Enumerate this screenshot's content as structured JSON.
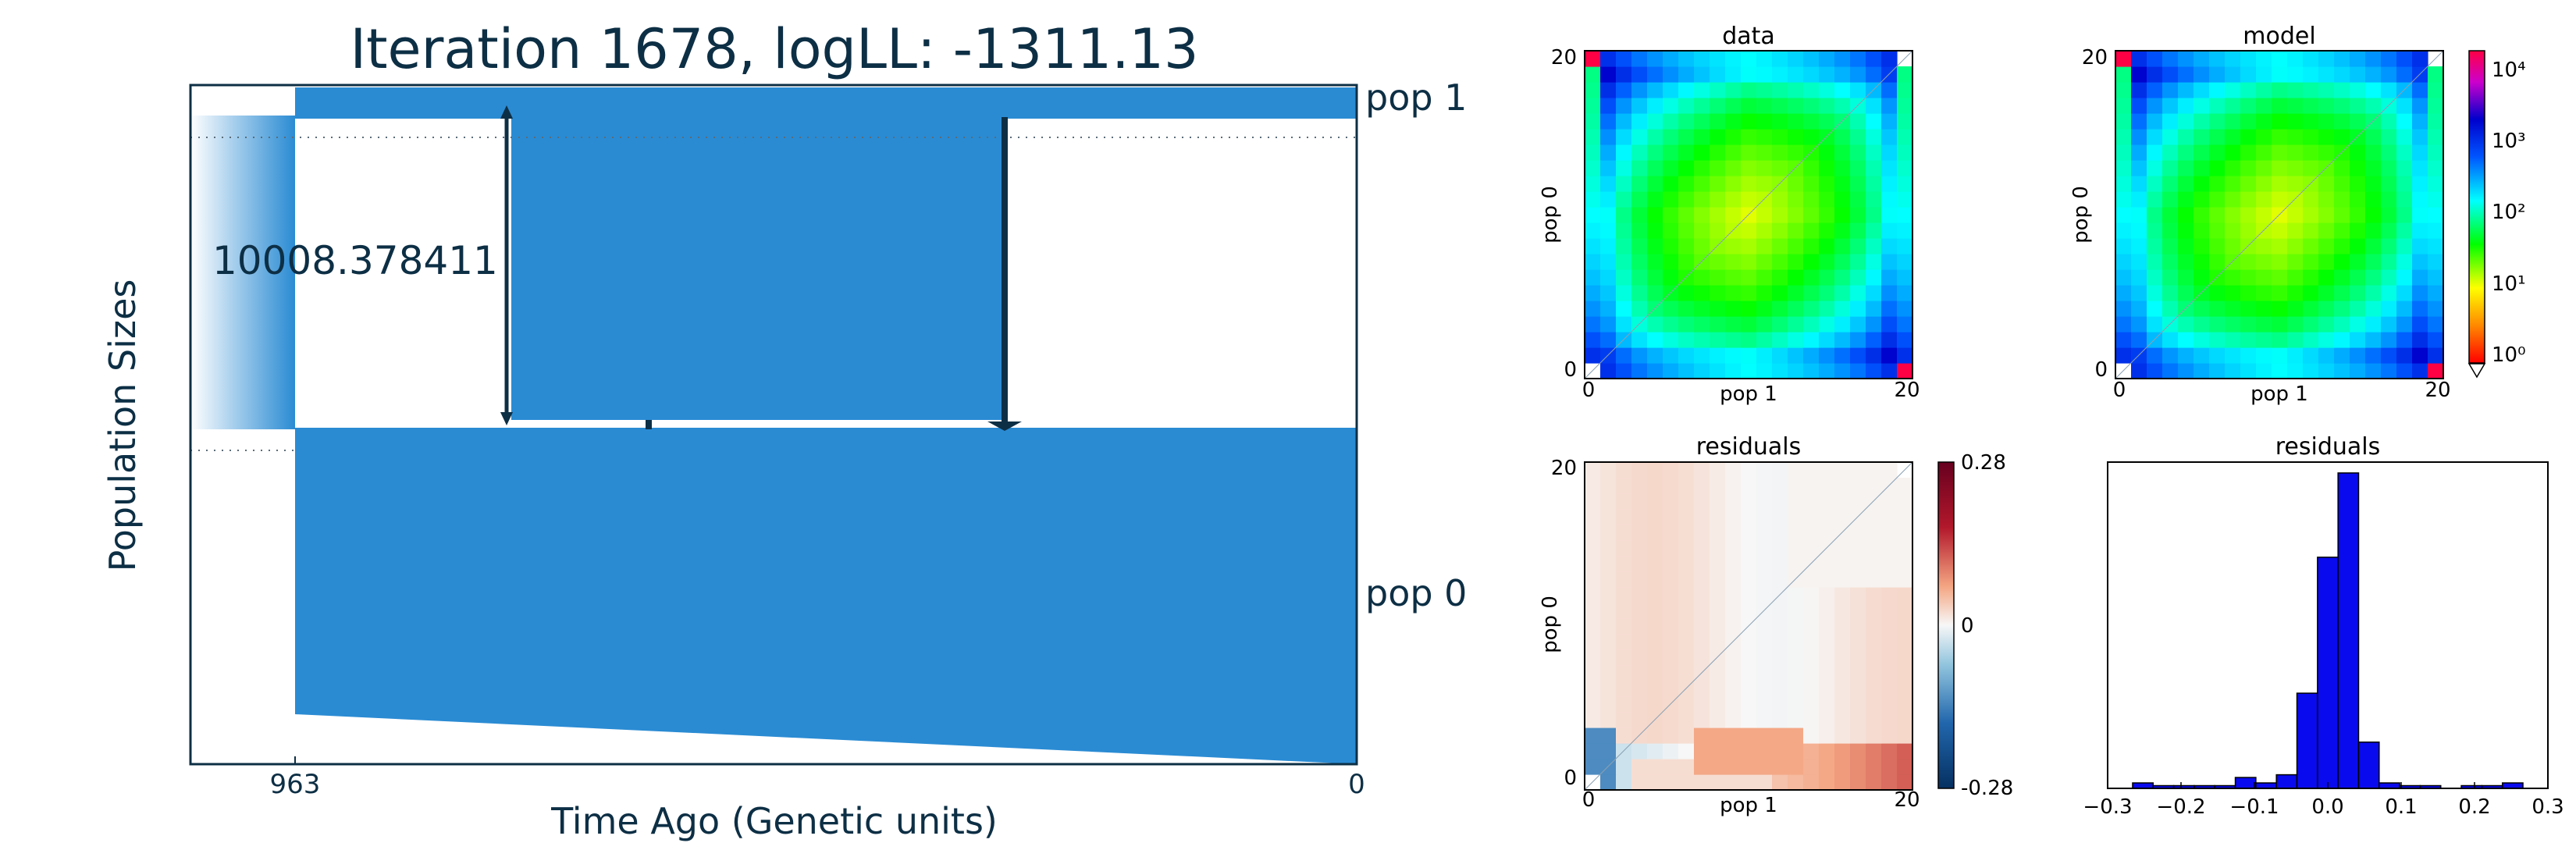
{
  "demo": {
    "title": "Iteration 1678, logLL:   -1311.13",
    "ylabel": "Population Sizes",
    "xlabel": "Time Ago (Genetic units)",
    "x_ticks": [
      "963",
      "0"
    ],
    "pop1_label": "pop 1",
    "pop0_label": "pop 0",
    "size_annotation": "10008.378411",
    "fill_color": "#2a8bd3",
    "line_color": "#0d2f45"
  },
  "chart_data": [
    {
      "type": "heatmap",
      "title": "data",
      "xlabel": "pop 1",
      "ylabel": "pop 0",
      "x_ticks": [
        "0",
        "20"
      ],
      "y_ticks": [
        "0",
        "20"
      ],
      "grid_size": 21,
      "scale": "log",
      "colormap": "rainbow"
    },
    {
      "type": "heatmap",
      "title": "model",
      "xlabel": "pop 1",
      "ylabel": "pop 0",
      "x_ticks": [
        "0",
        "20"
      ],
      "y_ticks": [
        "0",
        "20"
      ],
      "grid_size": 21,
      "scale": "log",
      "colormap": "rainbow",
      "colorbar": {
        "ticks": [
          "10⁰",
          "10¹",
          "10²",
          "10³",
          "10⁴"
        ],
        "range": [
          1,
          20000
        ]
      }
    },
    {
      "type": "heatmap",
      "title": "residuals",
      "xlabel": "pop 1",
      "ylabel": "pop 0",
      "x_ticks": [
        "0",
        "20"
      ],
      "y_ticks": [
        "0",
        "20"
      ],
      "grid_size": 21,
      "colormap": "RdBu",
      "colorbar": {
        "ticks": [
          "0.28",
          "0",
          "-0.28"
        ],
        "range": [
          -0.28,
          0.28
        ]
      }
    },
    {
      "type": "bar",
      "title": "residuals",
      "x_ticks": [
        "−0.3",
        "−0.2",
        "−0.1",
        "0.0",
        "0.1",
        "0.2",
        "0.3"
      ],
      "xlim": [
        -0.3,
        0.3
      ],
      "bin_width": 0.028,
      "bin_centers": [
        -0.252,
        -0.224,
        -0.196,
        -0.168,
        -0.14,
        -0.112,
        -0.084,
        -0.056,
        -0.028,
        0.0,
        0.028,
        0.056,
        0.084,
        0.112,
        0.14,
        0.168,
        0.196,
        0.224,
        0.252
      ],
      "values": [
        2,
        1,
        1,
        1,
        1,
        4,
        2,
        5,
        35,
        85,
        116,
        17,
        2,
        1,
        1,
        0,
        1,
        1,
        2
      ],
      "color": "#0a0aee"
    }
  ]
}
